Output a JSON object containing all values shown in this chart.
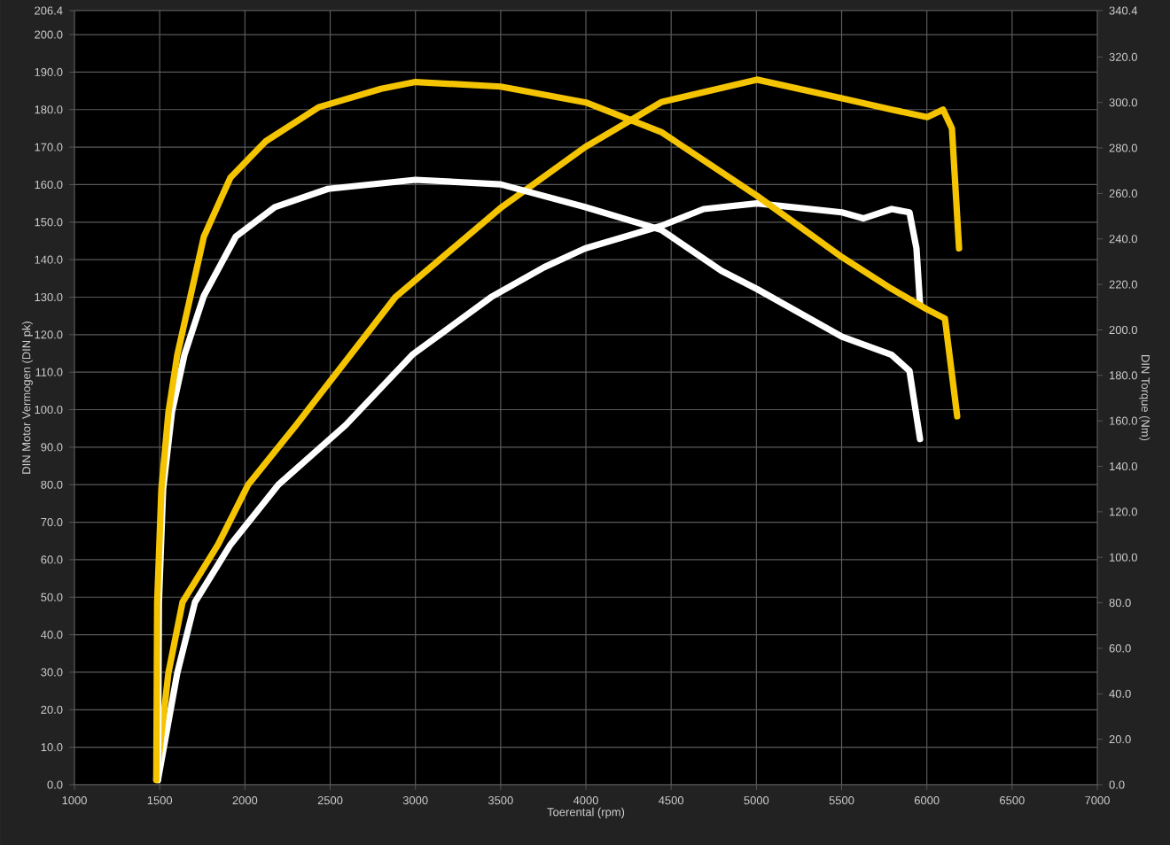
{
  "chart_data": {
    "type": "line",
    "xlabel": "Toerental (rpm)",
    "ylabel": "DIN Motor Vermogen (DIN pk)",
    "y2label": "DIN Torque (Nm)",
    "xlim": [
      1000,
      7000
    ],
    "xticks": [
      1000,
      1500,
      2000,
      2500,
      3000,
      3500,
      4000,
      4500,
      5000,
      5500,
      6000,
      6500,
      7000
    ],
    "ylim": [
      0,
      206.4
    ],
    "yticks": [
      {
        "value": 0,
        "label": "0.0"
      },
      {
        "value": 10,
        "label": "10.0"
      },
      {
        "value": 20,
        "label": "20.0"
      },
      {
        "value": 30,
        "label": "30.0"
      },
      {
        "value": 40,
        "label": "40.0"
      },
      {
        "value": 50,
        "label": "50.0"
      },
      {
        "value": 60,
        "label": "60.0"
      },
      {
        "value": 70,
        "label": "70.0"
      },
      {
        "value": 80,
        "label": "80.0"
      },
      {
        "value": 90,
        "label": "90.0"
      },
      {
        "value": 100,
        "label": "100.0"
      },
      {
        "value": 110,
        "label": "110.0"
      },
      {
        "value": 120,
        "label": "120.0"
      },
      {
        "value": 130,
        "label": "130.0"
      },
      {
        "value": 140,
        "label": "140.0"
      },
      {
        "value": 150,
        "label": "150.0"
      },
      {
        "value": 160,
        "label": "160.0"
      },
      {
        "value": 170,
        "label": "170.0"
      },
      {
        "value": 180,
        "label": "180.0"
      },
      {
        "value": 190,
        "label": "190.0"
      },
      {
        "value": 200,
        "label": "200.0"
      },
      206.4
    ],
    "y2lim": [
      0,
      340.4
    ],
    "y2ticks": [
      {
        "value": 0,
        "label": "0.0"
      },
      {
        "value": 20,
        "label": "20.0"
      },
      {
        "value": 40,
        "label": "40.0"
      },
      {
        "value": 60,
        "label": "60.0"
      },
      {
        "value": 80,
        "label": "80.0"
      },
      {
        "value": 100,
        "label": "100.0"
      },
      {
        "value": 120,
        "label": "120.0"
      },
      {
        "value": 140,
        "label": "140.0"
      },
      {
        "value": 160,
        "label": "160.0"
      },
      {
        "value": 180,
        "label": "180.0"
      },
      {
        "value": 200,
        "label": "200.0"
      },
      {
        "value": 220,
        "label": "220.0"
      },
      {
        "value": 240,
        "label": "240.0"
      },
      {
        "value": 260,
        "label": "260.0"
      },
      {
        "value": 280,
        "label": "280.0"
      },
      {
        "value": 300,
        "label": "300.0"
      },
      {
        "value": 320,
        "label": "320.0"
      },
      340.4
    ],
    "grid": true,
    "marker": "none",
    "line_style": "solid",
    "series": [
      {
        "color": "#ffffff",
        "axis": "y",
        "x": [
          1490,
          1603,
          1707,
          1915,
          2196,
          2591,
          2986,
          3444,
          3756,
          3995,
          4442,
          4691,
          5003,
          5502,
          5627,
          5794,
          5898,
          5939,
          5960
        ],
        "values": [
          1.4,
          29.8,
          48.7,
          64,
          80,
          95.9,
          114.8,
          130,
          138,
          143,
          149,
          153.5,
          155,
          152.6,
          151,
          153.5,
          152.6,
          143,
          128
        ]
      },
      {
        "color": "#f5c400",
        "axis": "y",
        "x": [
          1480,
          1551,
          1634,
          1842,
          2019,
          2300,
          2882,
          3506,
          3995,
          4442,
          5003,
          5502,
          5794,
          6002,
          6095,
          6147,
          6189
        ],
        "values": [
          1.4,
          29.8,
          48.7,
          64,
          80,
          95.9,
          130,
          154,
          170,
          182,
          188,
          183,
          180,
          178,
          180,
          175,
          143
        ]
      },
      {
        "color": "#ffffff",
        "axis": "y2",
        "x": [
          1490,
          1495,
          1520,
          1572,
          1645,
          1759,
          1946,
          2175,
          2487,
          3000,
          3500,
          3995,
          4442,
          4795,
          5003,
          5502,
          5794,
          5898,
          5960
        ],
        "values": [
          2,
          80,
          130,
          164,
          189,
          215,
          241,
          254,
          262,
          266,
          264,
          254,
          244,
          226,
          218,
          197,
          189,
          182,
          152
        ]
      },
      {
        "color": "#f5c400",
        "axis": "y2",
        "x": [
          1480,
          1485,
          1510,
          1551,
          1603,
          1759,
          1915,
          2123,
          2435,
          2799,
          3000,
          3500,
          4000,
          4442,
          5003,
          5502,
          5794,
          6002,
          6106,
          6178
        ],
        "values": [
          2,
          80,
          130,
          163.6,
          189,
          241,
          267,
          283,
          298,
          306,
          309,
          307,
          300,
          287,
          259,
          232,
          218,
          209,
          205,
          162
        ]
      }
    ]
  }
}
